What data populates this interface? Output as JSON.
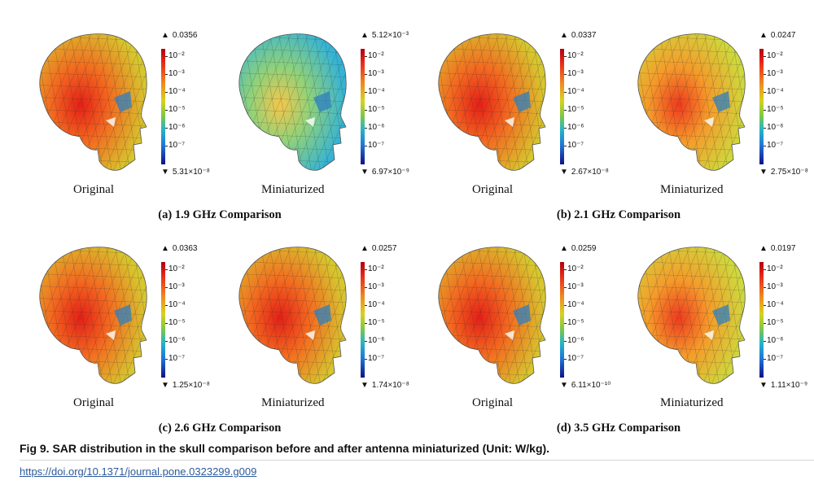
{
  "panels": [
    {
      "caption": "(a) 1.9 GHz Comparison",
      "pairs": [
        {
          "label": "Original",
          "max": "0.0356",
          "min": "5.31×10⁻⁸",
          "variant": "hot"
        },
        {
          "label": "Miniaturized",
          "max": "5.12×10⁻³",
          "min": "6.97×10⁻⁹",
          "variant": "cool"
        }
      ]
    },
    {
      "caption": "(b) 2.1 GHz Comparison",
      "pairs": [
        {
          "label": "Original",
          "max": "0.0337",
          "min": "2.67×10⁻⁸",
          "variant": "hot"
        },
        {
          "label": "Miniaturized",
          "max": "0.0247",
          "min": "2.75×10⁻⁸",
          "variant": "warm"
        }
      ]
    },
    {
      "caption": "(c) 2.6 GHz Comparison",
      "pairs": [
        {
          "label": "Original",
          "max": "0.0363",
          "min": "1.25×10⁻⁸",
          "variant": "hot"
        },
        {
          "label": "Miniaturized",
          "max": "0.0257",
          "min": "1.74×10⁻⁸",
          "variant": "hot"
        }
      ]
    },
    {
      "caption": "(d) 3.5 GHz Comparison",
      "pairs": [
        {
          "label": "Original",
          "max": "0.0259",
          "min": "6.11×10⁻¹⁰",
          "variant": "hot"
        },
        {
          "label": "Miniaturized",
          "max": "0.0197",
          "min": "1.11×10⁻⁹",
          "variant": "warm"
        }
      ]
    }
  ],
  "colorbar_ticks": [
    "10⁻²",
    "10⁻³",
    "10⁻⁴",
    "10⁻⁵",
    "10⁻⁶",
    "10⁻⁷"
  ],
  "max_marker": "▲",
  "min_marker": "▼",
  "figure_caption": "Fig 9.  SAR distribution in the skull comparison before and after antenna miniaturized (Unit: W/kg).",
  "doi": "https://doi.org/10.1371/journal.pone.0323299.g009",
  "colors": {
    "hot": "#e8261c",
    "warm": "#f08c1e",
    "cool": "#3fc0c8",
    "link": "#2b5a9b"
  }
}
